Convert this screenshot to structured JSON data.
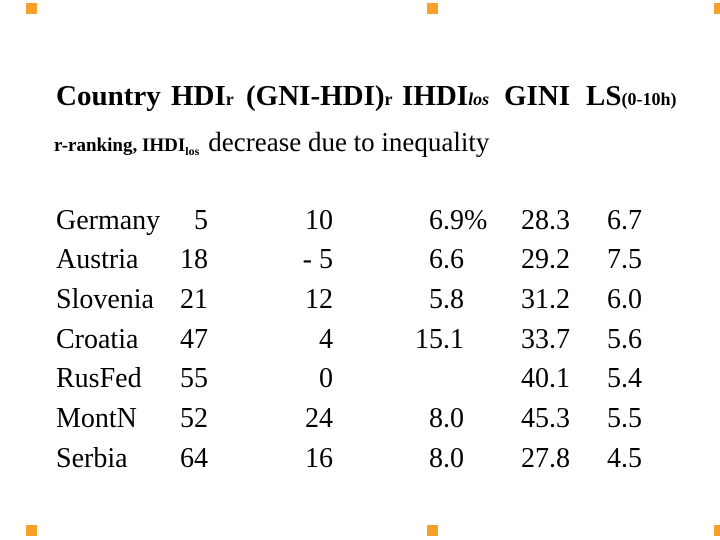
{
  "slide": {
    "background": "#ffffff",
    "text_color": "#000000",
    "marker_color": "#f7a128"
  },
  "header": {
    "col1": "Country",
    "col2_main": "HDI",
    "col2_sub": "r",
    "col3_main": "(GNI-HDI)",
    "col3_sub": "r",
    "col4_main": "IHDI",
    "col4_sub": "los",
    "col5": "GINI",
    "col6_main": "LS",
    "col6_sub": "(0-10h)"
  },
  "subheader": {
    "bold_main": "r-ranking, IHDI",
    "bold_sub": "los",
    "rest": "decrease due to inequality"
  },
  "table": {
    "rows": [
      {
        "name": "Germany",
        "c2": "5",
        "c3": "10",
        "c4": "6.9",
        "c4_suffix": "%",
        "c5": "28.3",
        "c6": "6.7"
      },
      {
        "name": "Austria",
        "c2": "18",
        "c3": "- 5",
        "c4": "6.6",
        "c5": "29.2",
        "c6": "7.5"
      },
      {
        "name": "Slovenia",
        "c2": "21",
        "c3": "12",
        "c4": "5.8",
        "c5": "31.2",
        "c6": "6.0"
      },
      {
        "name": "Croatia",
        "c2": "47",
        "c3": "4",
        "c4": "15.1",
        "c5": "33.7",
        "c6": "5.6"
      },
      {
        "name": "RusFed",
        "c2": "55",
        "c3": "0",
        "c4": "",
        "c5": "40.1",
        "c6": "5.4"
      },
      {
        "name": "MontN",
        "c2": "52",
        "c3": "24",
        "c4": "8.0",
        "c5": "45.3",
        "c6": "5.5"
      },
      {
        "name": "Serbia",
        "c2": "64",
        "c3": "16",
        "c4": "8.0",
        "c5": "27.8",
        "c6": "4.5"
      }
    ]
  }
}
